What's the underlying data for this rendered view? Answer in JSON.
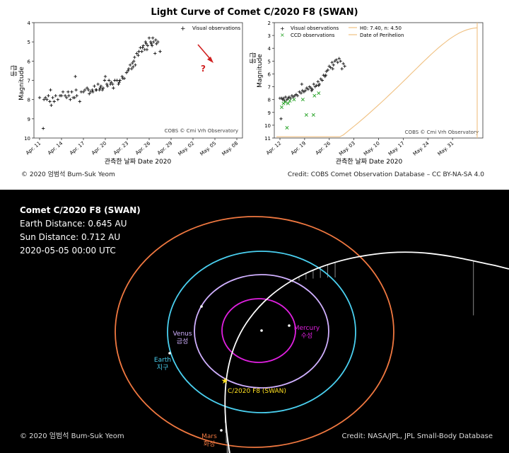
{
  "title": "Light Curve of Comet C/2020 F8 (SWAN)",
  "credits": {
    "copyright_top": "© 2020 엄범석 Bum-Suk Yeom",
    "credit_top": "Credit: COBS Comet Observation Database – CC BY-NA-SA 4.0",
    "copyright_bottom": "© 2020 엄범석 Bum-Suk Yeom",
    "credit_bottom": "Credit: NASA/JPL, JPL Small-Body Database"
  },
  "orbit": {
    "title": "Comet C/2020 F8 (SWAN)",
    "earth_distance": "Earth Distance: 0.645 AU",
    "sun_distance": "Sun Distance: 0.712 AU",
    "datetime": "2020-05-05 00:00 UTC",
    "labels": {
      "venus": "Venus",
      "venus_ko": "금성",
      "earth": "Earth",
      "earth_ko": "지구",
      "mercury": "Mercury",
      "mercury_ko": "수성",
      "mars": "Mars",
      "mars_ko": "화성",
      "comet": "C/2020 F8 (SWAN)"
    },
    "colors": {
      "background": "#000000",
      "mercury": "#e020e0",
      "venus": "#d0b0ff",
      "earth": "#4ad0f0",
      "mars": "#f07840",
      "comet": "#ffffff",
      "comet_marker": "#ffe020"
    }
  },
  "chart_data": [
    {
      "type": "scatter",
      "ylabel": "Magnitude",
      "ylabel_ko": "등급",
      "xlabel": "관측한 날짜  Date 2020",
      "ylim": [
        10,
        4
      ],
      "yticks": [
        "4",
        "5",
        "6",
        "7",
        "8",
        "9",
        "10"
      ],
      "xticks": [
        "Apr. 11",
        "Apr. 14",
        "Apr. 17",
        "Apr. 20",
        "Apr. 23",
        "Apr. 26",
        "Apr. 29",
        "May. 02",
        "May. 05",
        "May. 08"
      ],
      "legend": [
        "Visual observations"
      ],
      "legend_position": "top-right",
      "watermark": "COBS © Cmi Vrh Observatory",
      "annotation": "?",
      "series": [
        {
          "name": "Visual observations",
          "points": [
            [
              0,
              7.9
            ],
            [
              0.5,
              9.5
            ],
            [
              0.6,
              8.0
            ],
            [
              0.8,
              7.9
            ],
            [
              1.0,
              8.0
            ],
            [
              1.2,
              7.8
            ],
            [
              1.4,
              8.1
            ],
            [
              1.5,
              7.5
            ],
            [
              1.6,
              8.3
            ],
            [
              1.8,
              7.9
            ],
            [
              2.0,
              8.1
            ],
            [
              2.2,
              7.8
            ],
            [
              2.5,
              8.0
            ],
            [
              2.8,
              7.8
            ],
            [
              3.0,
              7.8
            ],
            [
              3.2,
              7.6
            ],
            [
              3.5,
              7.8
            ],
            [
              3.7,
              7.9
            ],
            [
              3.9,
              7.6
            ],
            [
              4.0,
              7.8
            ],
            [
              4.2,
              8.0
            ],
            [
              4.4,
              7.6
            ],
            [
              4.6,
              7.9
            ],
            [
              4.8,
              7.9
            ],
            [
              5.0,
              7.5
            ],
            [
              5.1,
              7.8
            ],
            [
              5.5,
              8.1
            ],
            [
              5.7,
              7.6
            ],
            [
              6.0,
              7.6
            ],
            [
              6.2,
              7.5
            ],
            [
              6.5,
              7.4
            ],
            [
              6.7,
              7.5
            ],
            [
              7.0,
              7.6
            ],
            [
              7.2,
              7.5
            ],
            [
              7.5,
              7.3
            ],
            [
              7.7,
              7.5
            ],
            [
              8.0,
              7.2
            ],
            [
              8.2,
              7.5
            ],
            [
              8.4,
              7.3
            ],
            [
              8.6,
              7.5
            ],
            [
              8.9,
              7.0
            ],
            [
              9.0,
              6.8
            ],
            [
              9.2,
              7.2
            ],
            [
              9.5,
              7.0
            ],
            [
              9.7,
              7.2
            ],
            [
              10.0,
              7.2
            ],
            [
              10.3,
              7.0
            ],
            [
              10.6,
              7.0
            ],
            [
              10.8,
              7.2
            ],
            [
              11.0,
              7.0
            ],
            [
              11.3,
              6.8
            ],
            [
              11.6,
              6.9
            ],
            [
              11.9,
              6.6
            ],
            [
              12.1,
              6.5
            ],
            [
              12.4,
              6.2
            ],
            [
              12.6,
              6.4
            ],
            [
              12.9,
              6.0
            ],
            [
              13.1,
              6.2
            ],
            [
              13.3,
              5.6
            ],
            [
              13.5,
              5.7
            ],
            [
              13.8,
              5.3
            ],
            [
              14.0,
              5.5
            ],
            [
              14.2,
              5.2
            ],
            [
              14.4,
              5.4
            ],
            [
              14.6,
              5.1
            ],
            [
              14.8,
              5.2
            ],
            [
              15.0,
              4.8
            ],
            [
              15.2,
              5.0
            ],
            [
              15.4,
              5.2
            ],
            [
              15.6,
              5.0
            ],
            [
              15.8,
              5.6
            ],
            [
              16.0,
              5.1
            ],
            [
              16.2,
              5.0
            ],
            [
              16.5,
              5.5
            ],
            [
              6.8,
              7.7
            ],
            [
              7.3,
              7.6
            ],
            [
              8.7,
              7.4
            ],
            [
              9.3,
              7.3
            ],
            [
              10.1,
              7.4
            ],
            [
              10.9,
              7.1
            ],
            [
              11.4,
              6.9
            ],
            [
              12.2,
              6.4
            ],
            [
              12.7,
              6.1
            ],
            [
              13.0,
              5.8
            ],
            [
              13.6,
              5.5
            ],
            [
              14.1,
              5.3
            ],
            [
              14.7,
              5.4
            ],
            [
              15.3,
              5.1
            ],
            [
              15.9,
              4.9
            ],
            [
              8.3,
              7.4
            ],
            [
              7.8,
              7.5
            ],
            [
              9.8,
              7.1
            ],
            [
              4.9,
              6.8
            ],
            [
              12.8,
              6.3
            ],
            [
              14.5,
              5.0
            ],
            [
              15.5,
              4.8
            ]
          ]
        }
      ]
    },
    {
      "type": "scatter",
      "ylabel": "Magnitude",
      "ylabel_ko": "등급",
      "xlabel": "관측한 날짜  Date 2020",
      "ylim": [
        11,
        2
      ],
      "yticks": [
        "2",
        "3",
        "4",
        "5",
        "6",
        "7",
        "8",
        "9",
        "10",
        "11"
      ],
      "xticks": [
        "Apr. 12",
        "Apr. 19",
        "Apr. 26",
        "May. 03",
        "May. 10",
        "May. 17",
        "May. 24",
        "May. 31"
      ],
      "legend": [
        "Visual observations",
        "CCD observations",
        "H0: 7.40, n: 4.50",
        "Date of Perihelion"
      ],
      "legend_position": "top",
      "watermark": "COBS © Cmi Vrh Observatory",
      "perihelion_day": 56,
      "model": {
        "H0": 7.4,
        "n": 4.5
      },
      "series": [
        {
          "name": "Visual observations",
          "points": [
            [
              0,
              7.9
            ],
            [
              0.3,
              9.5
            ],
            [
              0.5,
              7.9
            ],
            [
              0.8,
              8.0
            ],
            [
              1.0,
              7.9
            ],
            [
              1.3,
              8.1
            ],
            [
              1.6,
              7.8
            ],
            [
              2.0,
              8.0
            ],
            [
              2.3,
              7.9
            ],
            [
              2.6,
              7.8
            ],
            [
              3.0,
              7.9
            ],
            [
              3.4,
              7.7
            ],
            [
              3.8,
              7.8
            ],
            [
              4.2,
              7.7
            ],
            [
              4.6,
              7.6
            ],
            [
              5.0,
              7.7
            ],
            [
              5.5,
              7.4
            ],
            [
              6.0,
              7.5
            ],
            [
              6.4,
              7.3
            ],
            [
              6.8,
              7.4
            ],
            [
              7.2,
              7.3
            ],
            [
              7.6,
              7.1
            ],
            [
              8.0,
              7.2
            ],
            [
              8.4,
              7.0
            ],
            [
              8.8,
              7.1
            ],
            [
              9.2,
              7.2
            ],
            [
              9.6,
              6.8
            ],
            [
              10.0,
              7.0
            ],
            [
              10.4,
              6.9
            ],
            [
              10.8,
              6.6
            ],
            [
              11.2,
              6.8
            ],
            [
              11.6,
              6.4
            ],
            [
              12.0,
              6.5
            ],
            [
              12.4,
              6.1
            ],
            [
              12.8,
              6.2
            ],
            [
              13.2,
              5.8
            ],
            [
              13.6,
              5.7
            ],
            [
              14.0,
              5.4
            ],
            [
              14.4,
              5.5
            ],
            [
              14.8,
              5.1
            ],
            [
              15.2,
              5.3
            ],
            [
              15.6,
              5.0
            ],
            [
              16.0,
              4.9
            ],
            [
              16.4,
              5.1
            ],
            [
              16.8,
              4.8
            ],
            [
              17.2,
              5.0
            ],
            [
              17.6,
              5.6
            ],
            [
              18.0,
              5.2
            ],
            [
              18.4,
              5.4
            ],
            [
              6.2,
              6.8
            ],
            [
              9.0,
              7.3
            ],
            [
              11.0,
              6.9
            ],
            [
              13.0,
              6.1
            ],
            [
              15.0,
              5.6
            ]
          ]
        },
        {
          "name": "CCD observations",
          "points": [
            [
              0.5,
              8.6
            ],
            [
              1.0,
              8.3
            ],
            [
              1.5,
              8.2
            ],
            [
              2.0,
              10.2
            ],
            [
              2.3,
              8.3
            ],
            [
              2.8,
              8.1
            ],
            [
              4.0,
              8.0
            ],
            [
              6.5,
              8.0
            ],
            [
              7.5,
              9.2
            ],
            [
              9.5,
              9.2
            ],
            [
              9.8,
              7.7
            ],
            [
              11.0,
              7.5
            ]
          ]
        }
      ]
    }
  ]
}
